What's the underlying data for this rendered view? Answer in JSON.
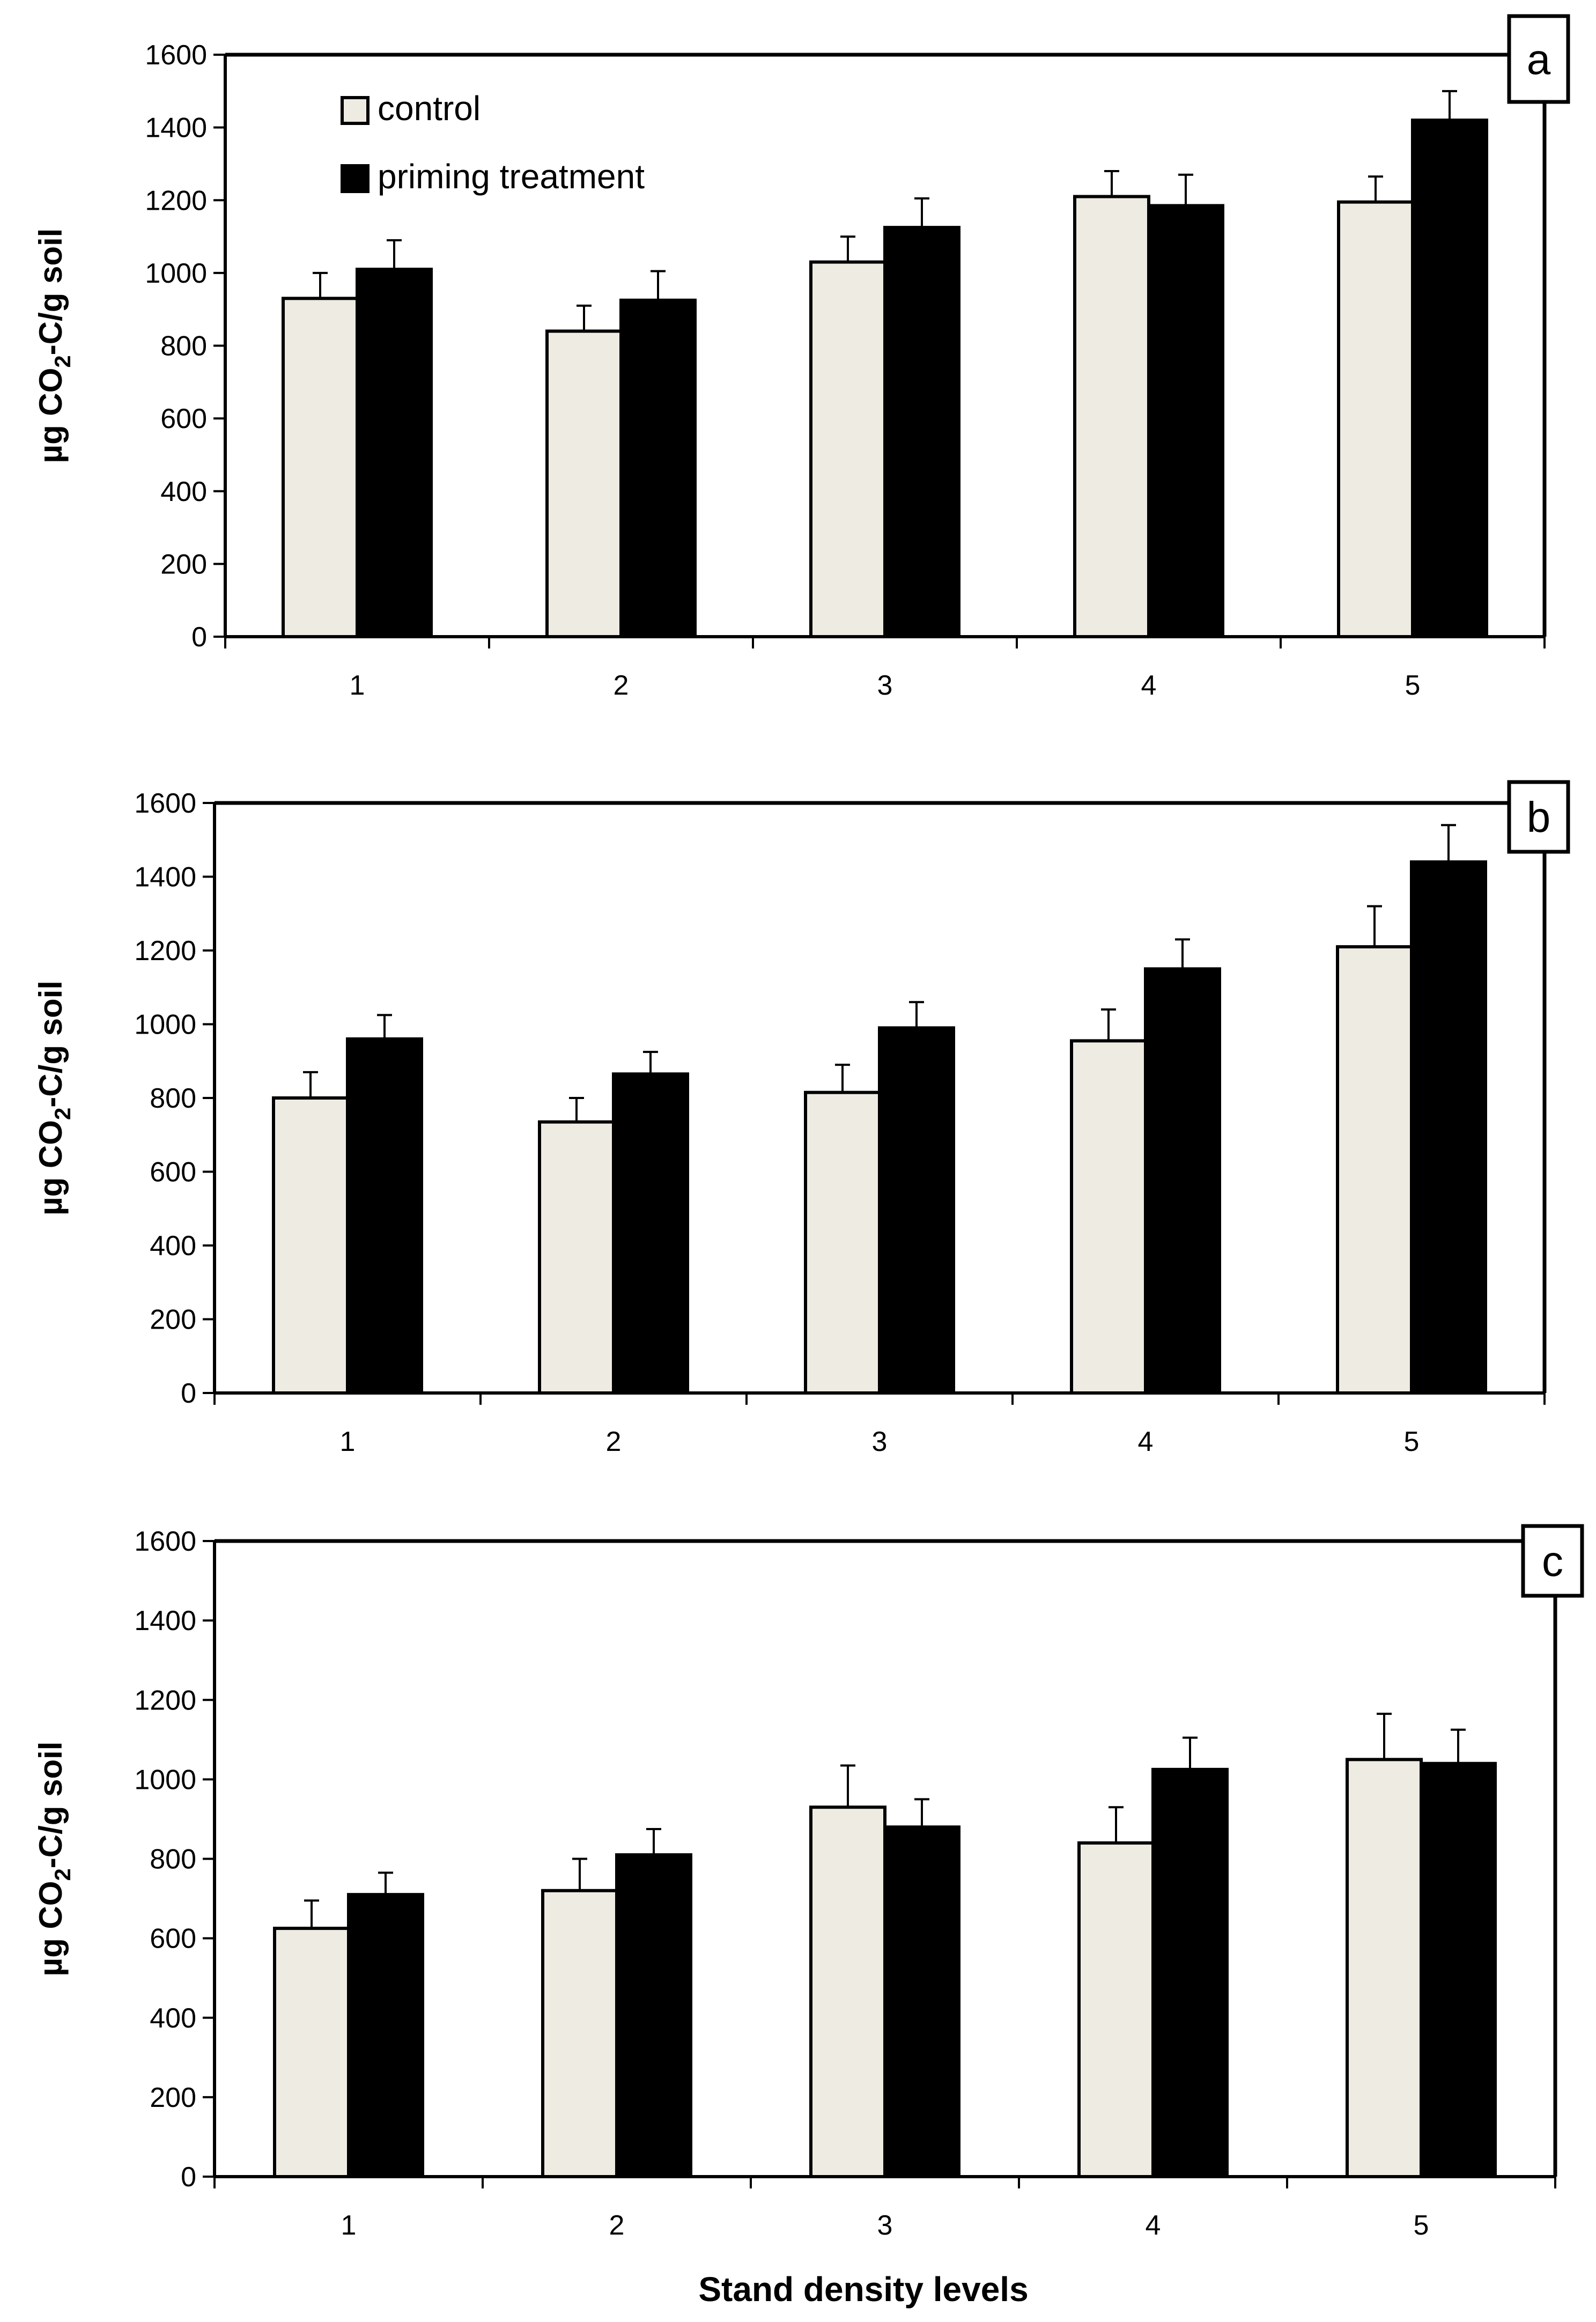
{
  "chart_data": [
    {
      "type": "bar",
      "panel_label": "a",
      "categories": [
        "1",
        "2",
        "3",
        "4",
        "5"
      ],
      "series": [
        {
          "name": "control",
          "values": [
            930,
            840,
            1030,
            1210,
            1195
          ],
          "errors": [
            70,
            70,
            70,
            70,
            70
          ]
        },
        {
          "name": "priming treatment",
          "values": [
            1010,
            925,
            1125,
            1185,
            1420
          ],
          "errors": [
            80,
            80,
            80,
            85,
            80
          ]
        }
      ],
      "ylabel": {
        "main": "µg CO",
        "sub": "2",
        "rest": "-C/g soil"
      },
      "yticks": [
        "0",
        "200",
        "400",
        "600",
        "800",
        "1000",
        "1200",
        "1400",
        "1600"
      ],
      "ylim": [
        0,
        1600
      ],
      "legend": [
        "control",
        "priming treatment"
      ],
      "legend_position": "top-left"
    },
    {
      "type": "bar",
      "panel_label": "b",
      "categories": [
        "1",
        "2",
        "3",
        "4",
        "5"
      ],
      "series": [
        {
          "name": "control",
          "values": [
            800,
            735,
            815,
            955,
            1210
          ],
          "errors": [
            70,
            65,
            75,
            85,
            110
          ]
        },
        {
          "name": "priming treatment",
          "values": [
            960,
            865,
            990,
            1150,
            1440
          ],
          "errors": [
            65,
            60,
            70,
            80,
            100
          ]
        }
      ],
      "ylabel": {
        "main": "µg CO",
        "sub": "2",
        "rest": "-C/g soil"
      },
      "yticks": [
        "0",
        "200",
        "400",
        "600",
        "800",
        "1000",
        "1200",
        "1400",
        "1600"
      ],
      "ylim": [
        0,
        1600
      ]
    },
    {
      "type": "bar",
      "panel_label": "c",
      "categories": [
        "1",
        "2",
        "3",
        "4",
        "5"
      ],
      "series": [
        {
          "name": "control",
          "values": [
            625,
            720,
            930,
            840,
            1050
          ],
          "errors": [
            70,
            80,
            105,
            90,
            115
          ]
        },
        {
          "name": "priming treatment",
          "values": [
            710,
            810,
            880,
            1025,
            1040
          ],
          "errors": [
            55,
            65,
            70,
            80,
            85
          ]
        }
      ],
      "ylabel": {
        "main": "µg CO",
        "sub": "2",
        "rest": "-C/g soil"
      },
      "yticks": [
        "0",
        "200",
        "400",
        "600",
        "800",
        "1000",
        "1200",
        "1400",
        "1600"
      ],
      "ylim": [
        0,
        1600
      ],
      "xlabel": "Stand density levels"
    }
  ],
  "colors": {
    "control": "#eeebe2",
    "priming": "#000000",
    "axis": "#000000"
  }
}
